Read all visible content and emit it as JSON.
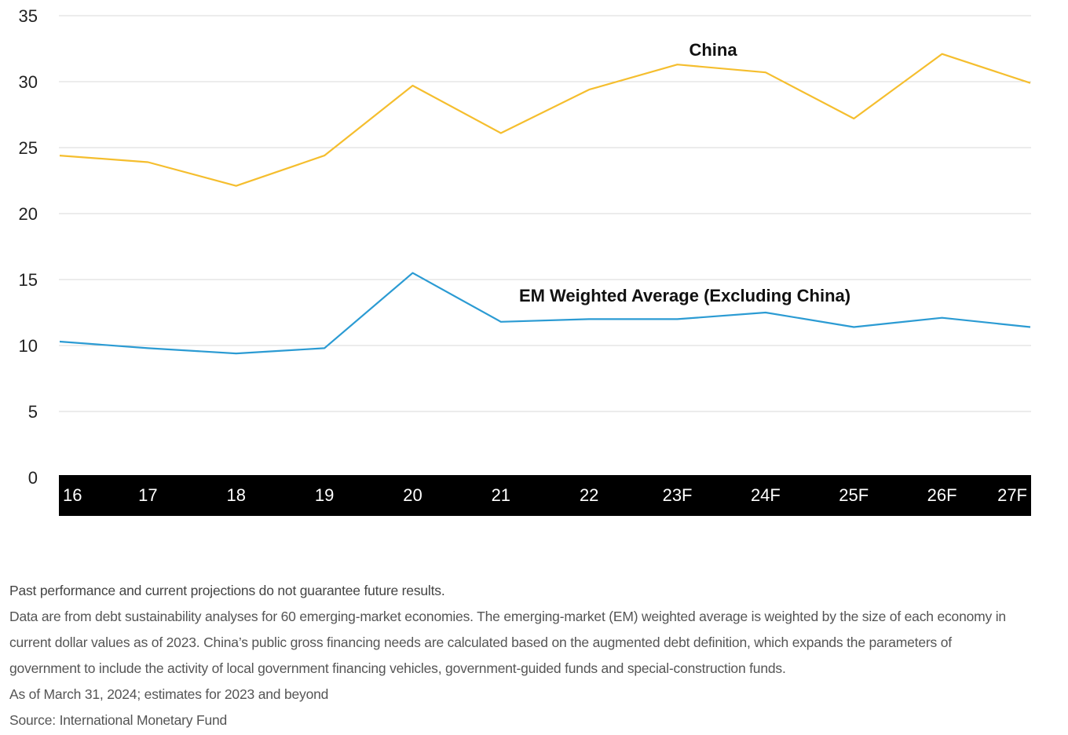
{
  "chart_data": {
    "type": "line",
    "categories": [
      "16",
      "17",
      "18",
      "19",
      "20",
      "21",
      "22",
      "23F",
      "24F",
      "25F",
      "26F",
      "27F"
    ],
    "ylim": [
      0,
      35
    ],
    "yticks": [
      "0",
      "5",
      "10",
      "15",
      "20",
      "25",
      "30",
      "35"
    ],
    "grid": true,
    "series": [
      {
        "name": "China",
        "color": "#F5BE2E",
        "values": [
          24.4,
          23.9,
          22.1,
          24.4,
          29.7,
          26.1,
          29.4,
          31.3,
          30.7,
          27.2,
          32.1,
          29.9
        ]
      },
      {
        "name": "EM Weighted Average (Excluding China)",
        "color": "#2B9BD3",
        "values": [
          10.3,
          9.8,
          9.4,
          9.8,
          15.5,
          11.8,
          12.0,
          12.0,
          12.5,
          11.4,
          12.1,
          11.4
        ]
      }
    ]
  },
  "footnotes": {
    "disclaimer": "Past performance and current projections do not guarantee future results.",
    "lines": [
      "Data are from debt sustainability analyses for 60 emerging-market economies. The emerging-market (EM) weighted average is weighted by the size of each economy in",
      "current dollar values as of 2023. China’s public gross financing needs are calculated based on the augmented debt definition, which expands the parameters of",
      "government to include the activity of local government financing vehicles, government-guided funds and special-construction funds.",
      "As of March 31, 2024; estimates for 2023 and beyond",
      "Source: International Monetary Fund"
    ]
  }
}
